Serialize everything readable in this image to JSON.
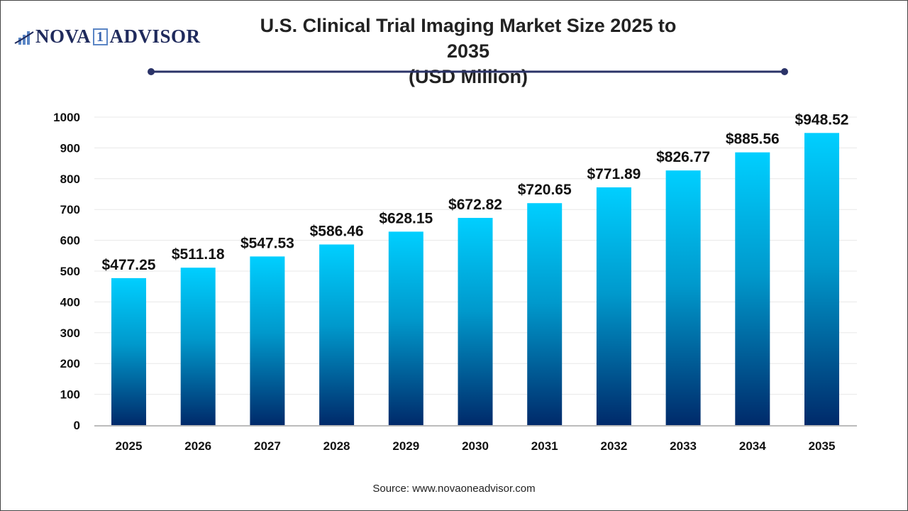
{
  "logo": {
    "text_left": "NOVA",
    "text_box": "1",
    "text_right": "ADVISOR"
  },
  "source": "Source: www.novaoneadvisor.com",
  "colors": {
    "bar_top": "#00cfff",
    "bar_bottom": "#002a6a",
    "title_line": "#2b3368"
  },
  "chart_data": {
    "type": "bar",
    "title": "U.S. Clinical Trial Imaging Market Size 2025 to 2035",
    "subtitle": "(USD Million)",
    "categories": [
      "2025",
      "2026",
      "2027",
      "2028",
      "2029",
      "2030",
      "2031",
      "2032",
      "2033",
      "2034",
      "2035"
    ],
    "values": [
      477.25,
      511.18,
      547.53,
      586.46,
      628.15,
      672.82,
      720.65,
      771.89,
      826.77,
      885.56,
      948.52
    ],
    "data_labels": [
      "$477.25",
      "$511.18",
      "$547.53",
      "$586.46",
      "$628.15",
      "$672.82",
      "$720.65",
      "$771.89",
      "$826.77",
      "$885.56",
      "$948.52"
    ],
    "yticks": [
      0,
      100,
      200,
      300,
      400,
      500,
      600,
      700,
      800,
      900,
      1000
    ],
    "ylim": [
      0,
      1000
    ],
    "grid": true,
    "xlabel": "",
    "ylabel": ""
  }
}
